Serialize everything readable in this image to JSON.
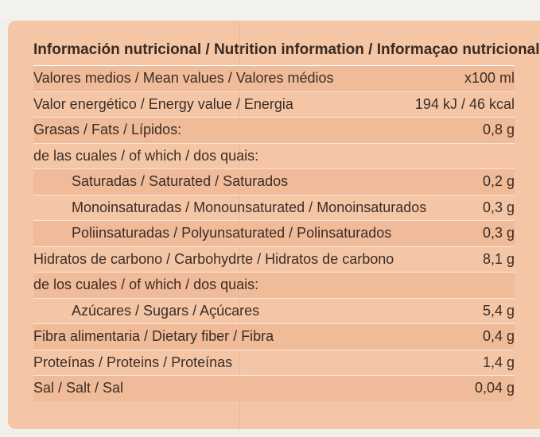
{
  "title": "Información nutricional / Nutrition information / Informaçao nutricional",
  "rows": [
    {
      "label": "Valores medios / Mean values / Valores médios",
      "value": "x100 ml"
    },
    {
      "label": "Valor energético / Energy value / Energia",
      "value": "194 kJ / 46 kcal"
    },
    {
      "label": "Grasas / Fats / Lípidos:",
      "value": "0,8 g"
    },
    {
      "label": "de las cuales / of which / dos quais:",
      "value": ""
    },
    {
      "label": "Saturadas / Saturated / Saturados",
      "value": "0,2 g"
    },
    {
      "label": "Monoinsaturadas / Monounsaturated / Monoinsaturados",
      "value": "0,3 g"
    },
    {
      "label": "Poliinsaturadas / Polyunsaturated / Polinsaturados",
      "value": "0,3 g"
    },
    {
      "label": "Hidratos de carbono / Carbohydrte / Hidratos de carbono",
      "value": "8,1 g"
    },
    {
      "label": "de los cuales / of which / dos quais:",
      "value": ""
    },
    {
      "label": "Azúcares / Sugars / Açúcares",
      "value": "5,4 g"
    },
    {
      "label": "Fibra alimentaria / Dietary fiber / Fibra",
      "value": "0,4 g"
    },
    {
      "label": "Proteínas / Proteins / Proteínas",
      "value": "1,4 g"
    },
    {
      "label": "Sal / Salt / Sal",
      "value": "0,04 g"
    }
  ]
}
